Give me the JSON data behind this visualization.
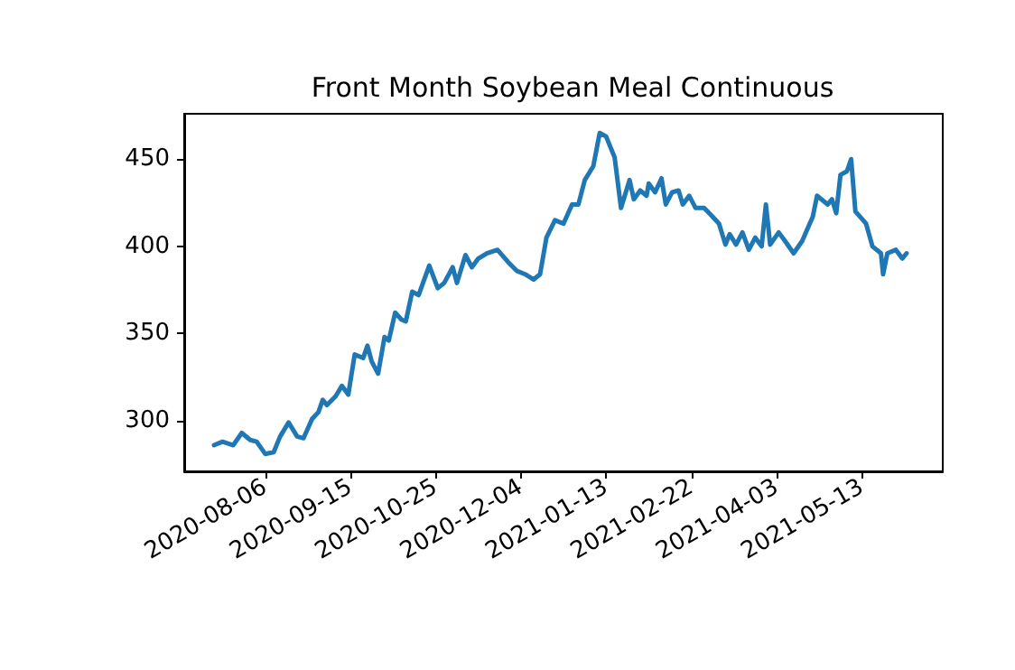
{
  "chart_data": {
    "type": "line",
    "title": "Front Month Soybean Meal Continuous",
    "x": [
      "2020-07-13",
      "2020-07-17",
      "2020-07-22",
      "2020-07-26",
      "2020-07-30",
      "2020-08-02",
      "2020-08-06",
      "2020-08-10",
      "2020-08-13",
      "2020-08-17",
      "2020-08-21",
      "2020-08-24",
      "2020-08-28",
      "2020-08-31",
      "2020-09-02",
      "2020-09-04",
      "2020-09-08",
      "2020-09-11",
      "2020-09-14",
      "2020-09-17",
      "2020-09-21",
      "2020-09-23",
      "2020-09-25",
      "2020-09-28",
      "2020-10-01",
      "2020-10-03",
      "2020-10-06",
      "2020-10-09",
      "2020-10-11",
      "2020-10-14",
      "2020-10-17",
      "2020-10-22",
      "2020-10-26",
      "2020-10-29",
      "2020-11-02",
      "2020-11-04",
      "2020-11-08",
      "2020-11-11",
      "2020-11-14",
      "2020-11-18",
      "2020-11-23",
      "2020-11-28",
      "2020-12-02",
      "2020-12-06",
      "2020-12-10",
      "2020-12-13",
      "2020-12-16",
      "2020-12-20",
      "2020-12-24",
      "2020-12-28",
      "2020-12-31",
      "2021-01-03",
      "2021-01-07",
      "2021-01-10",
      "2021-01-13",
      "2021-01-17",
      "2021-01-20",
      "2021-01-24",
      "2021-01-26",
      "2021-01-29",
      "2021-02-01",
      "2021-02-02",
      "2021-02-05",
      "2021-02-08",
      "2021-02-10",
      "2021-02-13",
      "2021-02-16",
      "2021-02-18",
      "2021-02-21",
      "2021-02-24",
      "2021-02-28",
      "2021-03-04",
      "2021-03-07",
      "2021-03-10",
      "2021-03-12",
      "2021-03-15",
      "2021-03-18",
      "2021-03-21",
      "2021-03-24",
      "2021-03-27",
      "2021-03-29",
      "2021-03-31",
      "2021-04-04",
      "2021-04-07",
      "2021-04-11",
      "2021-04-15",
      "2021-04-20",
      "2021-04-22",
      "2021-04-27",
      "2021-04-29",
      "2021-05-01",
      "2021-05-03",
      "2021-05-06",
      "2021-05-08",
      "2021-05-10",
      "2021-05-15",
      "2021-05-18",
      "2021-05-22",
      "2021-05-23",
      "2021-05-25",
      "2021-05-29",
      "2021-06-01",
      "2021-06-03"
    ],
    "series": [
      {
        "color": "#1f77b4",
        "values": [
          286,
          288,
          286,
          293,
          289,
          288,
          281,
          282,
          291,
          299,
          291,
          290,
          301,
          305,
          312,
          309,
          314,
          320,
          315,
          338,
          336,
          343,
          334,
          327,
          348,
          346,
          362,
          358,
          357,
          374,
          372,
          389,
          376,
          379,
          388,
          379,
          395,
          388,
          393,
          396,
          398,
          391,
          386,
          384,
          381,
          384,
          405,
          415,
          413,
          424,
          424,
          438,
          446,
          465,
          463,
          451,
          422,
          438,
          427,
          432,
          429,
          436,
          431,
          439,
          424,
          431,
          432,
          424,
          429,
          422,
          422,
          417,
          413,
          401,
          407,
          401,
          408,
          398,
          405,
          400,
          424,
          401,
          408,
          403,
          396,
          403,
          417,
          429,
          424,
          427,
          419,
          441,
          443,
          450,
          420,
          413,
          400,
          396,
          384,
          396,
          398,
          393,
          396
        ]
      }
    ],
    "xlim": [
      "2020-06-29",
      "2021-06-20"
    ],
    "xticks": [
      "2020-08-06",
      "2020-09-15",
      "2020-10-25",
      "2020-12-04",
      "2021-01-13",
      "2021-02-22",
      "2021-04-03",
      "2021-05-13"
    ],
    "ylim": [
      271,
      476
    ],
    "yticks": [
      300,
      350,
      400,
      450
    ],
    "grid": false,
    "marker": "none",
    "line_style": "solid"
  }
}
